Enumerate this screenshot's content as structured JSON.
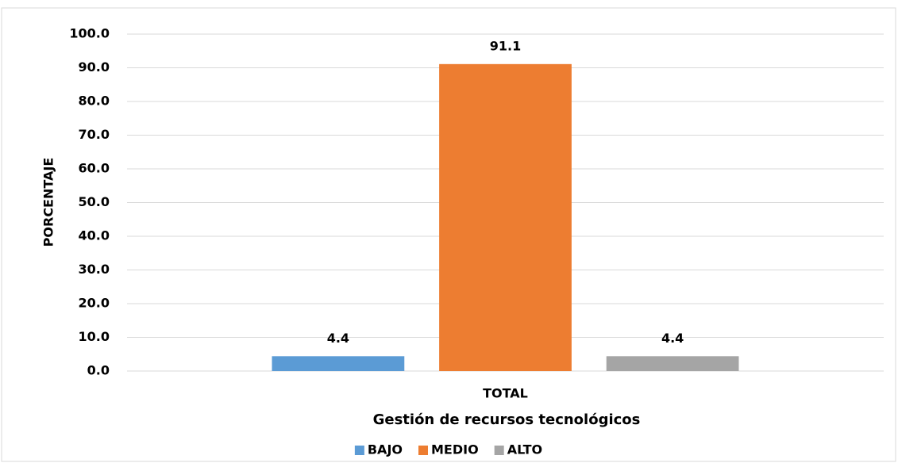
{
  "chart_data": {
    "type": "bar",
    "categories": [
      "TOTAL"
    ],
    "x_label": "Gestión de recursos tecnológicos",
    "y_label": "PORCENTAJE",
    "series": [
      {
        "name": "BAJO",
        "color": "#5b9bd5",
        "values": [
          4.4
        ]
      },
      {
        "name": "MEDIO",
        "color": "#ed7d31",
        "values": [
          91.1
        ]
      },
      {
        "name": "ALTO",
        "color": "#a5a5a5",
        "values": [
          4.4
        ]
      }
    ],
    "ylim": [
      0,
      100
    ],
    "yticks": [
      {
        "value": 0,
        "label": "0.0"
      },
      {
        "value": 10,
        "label": "10.0"
      },
      {
        "value": 20,
        "label": "20.0"
      },
      {
        "value": 30,
        "label": "30.0"
      },
      {
        "value": 40,
        "label": "40.0"
      },
      {
        "value": 50,
        "label": "50.0"
      },
      {
        "value": 60,
        "label": "60.0"
      },
      {
        "value": 70,
        "label": "70.0"
      },
      {
        "value": 80,
        "label": "80.0"
      },
      {
        "value": 90,
        "label": "90.0"
      },
      {
        "value": 100,
        "label": "100.0"
      }
    ],
    "grid": true,
    "legend": "bottom"
  }
}
